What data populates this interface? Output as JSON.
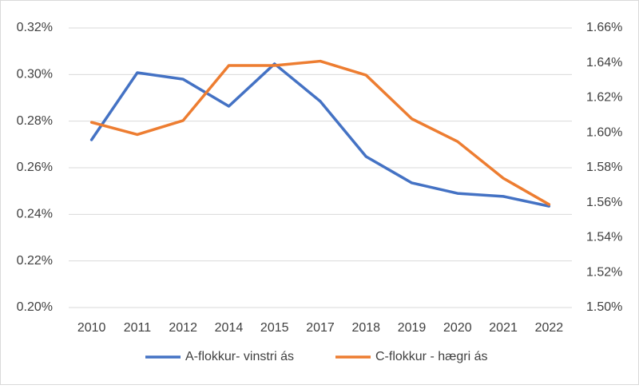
{
  "chart_data": {
    "type": "line",
    "categories": [
      "2010",
      "2011",
      "2012",
      "2014",
      "2015",
      "2017",
      "2018",
      "2019",
      "2020",
      "2021",
      "2022"
    ],
    "series": [
      {
        "name": "A-flokkur- vinstri ás",
        "color": "#4472c4",
        "axis": "y",
        "values": [
          0.272,
          0.3008,
          0.298,
          0.2864,
          0.3046,
          0.2885,
          0.2648,
          0.2535,
          0.249,
          0.2477,
          0.2435
        ]
      },
      {
        "name": "C-flokkur - hægri ás",
        "color": "#ed7d31",
        "axis": "y2",
        "values": [
          1.606,
          1.599,
          1.607,
          1.6385,
          1.6385,
          1.641,
          1.633,
          1.608,
          1.595,
          1.574,
          1.559
        ]
      }
    ],
    "ylim": [
      0.2,
      0.32
    ],
    "yticks": [
      {
        "value": 0.2,
        "label": "0.20%"
      },
      {
        "value": 0.22,
        "label": "0.22%"
      },
      {
        "value": 0.24,
        "label": "0.24%"
      },
      {
        "value": 0.26,
        "label": "0.26%"
      },
      {
        "value": 0.28,
        "label": "0.28%"
      },
      {
        "value": 0.3,
        "label": "0.30%"
      },
      {
        "value": 0.32,
        "label": "0.32%"
      }
    ],
    "y2lim": [
      1.5,
      1.66
    ],
    "y2ticks": [
      {
        "value": 1.5,
        "label": "1.50%"
      },
      {
        "value": 1.52,
        "label": "1.52%"
      },
      {
        "value": 1.54,
        "label": "1.54%"
      },
      {
        "value": 1.56,
        "label": "1.56%"
      },
      {
        "value": 1.58,
        "label": "1.58%"
      },
      {
        "value": 1.6,
        "label": "1.60%"
      },
      {
        "value": 1.62,
        "label": "1.62%"
      },
      {
        "value": 1.64,
        "label": "1.64%"
      },
      {
        "value": 1.66,
        "label": "1.66%"
      }
    ],
    "grid": true,
    "legend": "bottom"
  }
}
